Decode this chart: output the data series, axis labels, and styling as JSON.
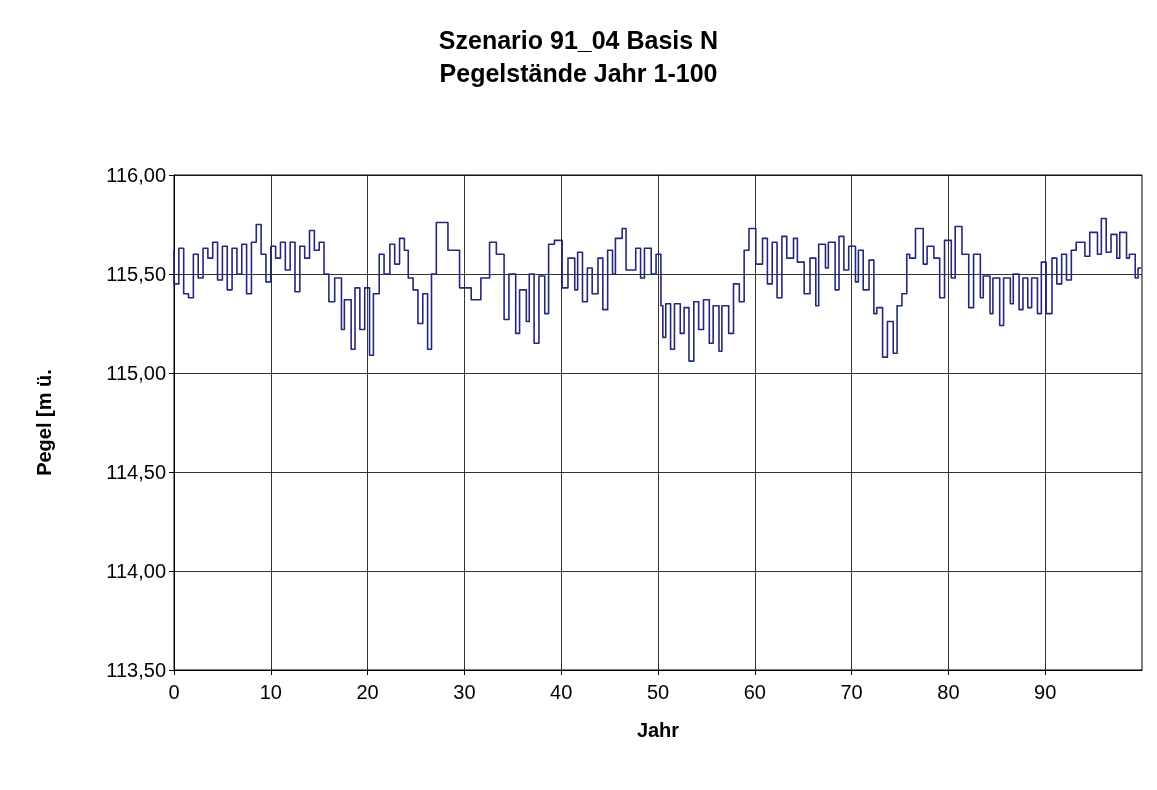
{
  "chart_data": {
    "type": "step",
    "title": "Szenario 91_04 Basis N",
    "subtitle": "Pegelstände Jahr 1-100",
    "xlabel": "Jahr",
    "ylabel": "Pegel [m ü.",
    "x": [
      0,
      0.5,
      1,
      1.5,
      2,
      2.5,
      3,
      3.5,
      4,
      4.5,
      5,
      5.5,
      6,
      6.5,
      7,
      7.5,
      8,
      8.5,
      9,
      9.5,
      10,
      10.5,
      11,
      11.5,
      12,
      12.5,
      13,
      13.5,
      14,
      14.5,
      15,
      15.5,
      16,
      16.6,
      17.3,
      17.6,
      18.3,
      18.7,
      19.2,
      19.7,
      20.2,
      20.6,
      21.2,
      21.7,
      22.3,
      22.8,
      23.3,
      23.8,
      24.2,
      24.7,
      25.2,
      25.7,
      26.2,
      26.6,
      27.1,
      28.3,
      29.5,
      30.7,
      31.7,
      32.6,
      33.3,
      34.1,
      34.6,
      35.3,
      35.7,
      36.4,
      36.7,
      37.2,
      37.7,
      38.3,
      38.7,
      39.3,
      40.1,
      40.7,
      41.4,
      41.7,
      42.2,
      42.7,
      43.2,
      43.8,
      44.3,
      44.8,
      45.3,
      45.6,
      46.3,
      46.7,
      47.7,
      48.2,
      48.6,
      49.3,
      49.8,
      50.3,
      50.5,
      50.8,
      51.3,
      51.7,
      52.3,
      52.7,
      53.2,
      53.7,
      54.2,
      54.7,
      55.3,
      55.7,
      56.3,
      56.6,
      57.3,
      57.8,
      58.4,
      58.9,
      59.4,
      60.1,
      60.8,
      61.3,
      61.8,
      62.3,
      62.8,
      63.3,
      64.0,
      64.4,
      65.1,
      65.7,
      66.3,
      66.6,
      67.3,
      67.6,
      68.3,
      68.7,
      69.2,
      69.7,
      70.4,
      70.7,
      71.2,
      71.8,
      72.3,
      72.6,
      73.2,
      73.7,
      74.3,
      74.7,
      75.2,
      75.7,
      76.0,
      76.6,
      77.4,
      77.8,
      78.5,
      79.1,
      79.6,
      80.3,
      80.7,
      81.4,
      82.1,
      82.6,
      83.3,
      83.6,
      84.3,
      84.6,
      85.3,
      85.7,
      86.4,
      86.7,
      87.3,
      87.7,
      88.2,
      88.6,
      89.2,
      89.6,
      90.1,
      90.7,
      91.2,
      91.7,
      92.2,
      92.7,
      93.2,
      94.1,
      94.6,
      95.4,
      95.8,
      96.3,
      96.8,
      97.4,
      97.7,
      98.4,
      98.7,
      99.3,
      99.6,
      99.9
    ],
    "series": [
      {
        "color": "#23297a",
        "values": [
          115.62,
          115.45,
          115.63,
          115.4,
          115.38,
          115.6,
          115.48,
          115.63,
          115.58,
          115.66,
          115.47,
          115.64,
          115.42,
          115.63,
          115.5,
          115.65,
          115.4,
          115.66,
          115.75,
          115.6,
          115.46,
          115.64,
          115.58,
          115.66,
          115.52,
          115.66,
          115.41,
          115.64,
          115.58,
          115.72,
          115.62,
          115.66,
          115.5,
          115.36,
          115.48,
          115.22,
          115.37,
          115.12,
          115.43,
          115.22,
          115.43,
          115.09,
          115.4,
          115.6,
          115.5,
          115.65,
          115.55,
          115.68,
          115.62,
          115.48,
          115.42,
          115.25,
          115.4,
          115.12,
          115.5,
          115.76,
          115.62,
          115.43,
          115.37,
          115.48,
          115.66,
          115.6,
          115.27,
          115.5,
          115.2,
          115.42,
          115.26,
          115.5,
          115.15,
          115.49,
          115.3,
          115.65,
          115.67,
          115.43,
          115.58,
          115.42,
          115.61,
          115.36,
          115.53,
          115.4,
          115.58,
          115.32,
          115.62,
          115.5,
          115.68,
          115.73,
          115.52,
          115.63,
          115.48,
          115.63,
          115.5,
          115.6,
          115.34,
          115.18,
          115.35,
          115.12,
          115.35,
          115.2,
          115.33,
          115.06,
          115.36,
          115.22,
          115.37,
          115.15,
          115.34,
          115.11,
          115.34,
          115.2,
          115.45,
          115.36,
          115.62,
          115.73,
          115.55,
          115.68,
          115.45,
          115.66,
          115.38,
          115.69,
          115.58,
          115.68,
          115.56,
          115.4,
          115.58,
          115.34,
          115.65,
          115.53,
          115.66,
          115.42,
          115.69,
          115.52,
          115.64,
          115.46,
          115.62,
          115.42,
          115.57,
          115.3,
          115.33,
          115.08,
          115.26,
          115.1,
          115.34,
          115.4,
          115.6,
          115.58,
          115.73,
          115.55,
          115.64,
          115.58,
          115.38,
          115.67,
          115.48,
          115.74,
          115.6,
          115.33,
          115.6,
          115.38,
          115.49,
          115.3,
          115.48,
          115.24,
          115.48,
          115.35,
          115.5,
          115.32,
          115.48,
          115.33,
          115.48,
          115.3,
          115.56,
          115.3,
          115.58,
          115.45,
          115.6,
          115.47,
          115.62,
          115.66,
          115.59,
          115.71,
          115.6,
          115.78,
          115.61,
          115.7,
          115.58,
          115.71,
          115.58,
          115.6,
          115.48,
          115.53
        ]
      }
    ],
    "xlim": [
      0,
      100
    ],
    "xticks": [
      0,
      10,
      20,
      30,
      40,
      50,
      60,
      70,
      80,
      90
    ],
    "ylim": [
      113.5,
      116
    ],
    "yticks": [
      {
        "value": 113.5,
        "label": "113,50"
      },
      {
        "value": 114,
        "label": "114,00"
      },
      {
        "value": 114.5,
        "label": "114,50"
      },
      {
        "value": 115,
        "label": "115,00"
      },
      {
        "value": 115.5,
        "label": "115,50"
      },
      {
        "value": 116,
        "label": "116,00"
      }
    ],
    "grid": true,
    "marker": "none",
    "line_style": "solid"
  }
}
